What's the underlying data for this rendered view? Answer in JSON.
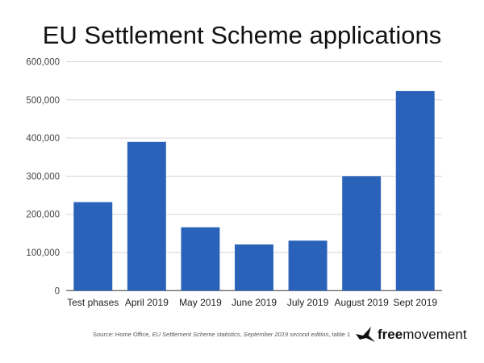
{
  "chart_data": {
    "type": "bar",
    "title": "EU Settlement Scheme applications",
    "categories": [
      "Test phases",
      "April 2019",
      "May 2019",
      "June 2019",
      "July 2019",
      "August 2019",
      "Sept 2019"
    ],
    "values": [
      232000,
      390000,
      166000,
      121000,
      131000,
      300000,
      523000
    ],
    "xlabel": "",
    "ylabel": "",
    "ylim": [
      0,
      600000
    ],
    "yticks": [
      0,
      100000,
      200000,
      300000,
      400000,
      500000,
      600000
    ],
    "ytick_labels": [
      "0",
      "100,000",
      "200,000",
      "300,000",
      "400,000",
      "500,000",
      "600,000"
    ],
    "grid": true,
    "bar_color": "#2B62B9"
  },
  "source": {
    "prefix": "Source: Home Office, ",
    "italic": "EU Settlement Scheme statistics, September 2019 second edition",
    "suffix": ", table 1"
  },
  "logo": {
    "bold": "free",
    "rest": "movement"
  }
}
